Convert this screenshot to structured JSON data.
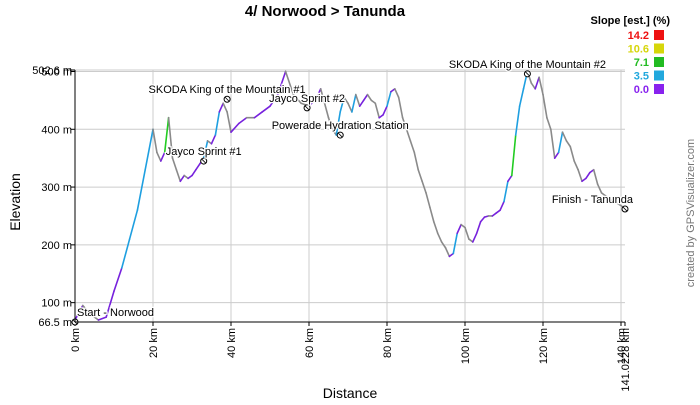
{
  "chart_data": {
    "type": "line",
    "title": "4/ Norwood > Tanunda",
    "xlabel": "Distance",
    "ylabel": "Elevation",
    "xlim": [
      0,
      141.0228
    ],
    "ylim": [
      66.5,
      502.6
    ],
    "x_ticks": [
      {
        "value": 0,
        "label": "0 km"
      },
      {
        "value": 20,
        "label": "20 km"
      },
      {
        "value": 40,
        "label": "40 km"
      },
      {
        "value": 60,
        "label": "60 km"
      },
      {
        "value": 80,
        "label": "80 km"
      },
      {
        "value": 100,
        "label": "100 km"
      },
      {
        "value": 120,
        "label": "120 km"
      },
      {
        "value": 140,
        "label": "140 km"
      },
      {
        "value": 141.0228,
        "label": "141.0228 km"
      }
    ],
    "y_ticks": [
      {
        "value": 66.5,
        "label": "66.5 m"
      },
      {
        "value": 100,
        "label": "100 m"
      },
      {
        "value": 200,
        "label": "200 m"
      },
      {
        "value": 300,
        "label": "300 m"
      },
      {
        "value": 400,
        "label": "400 m"
      },
      {
        "value": 500,
        "label": "500 m"
      },
      {
        "value": 502.6,
        "label": "502.6 m"
      }
    ],
    "grid": true,
    "legend": {
      "title": "Slope [est.] (%)",
      "placement": "top-right",
      "items": [
        {
          "label": "14.2",
          "color": "#ee1111"
        },
        {
          "label": "10.6",
          "color": "#d6d60a"
        },
        {
          "label": "7.1",
          "color": "#22bb22"
        },
        {
          "label": "3.5",
          "color": "#22a8dd"
        },
        {
          "label": "0.0",
          "color": "#8822ee"
        }
      ]
    },
    "slope_colors": {
      "negative": "#8a8a8a",
      "0": "#7722dd",
      "3.5": "#1e9fe0",
      "7.1": "#22cc22",
      "10.6": "#d8d800",
      "14.2": "#ee1111"
    },
    "series": [
      {
        "points": [
          [
            0,
            70
          ],
          [
            2,
            95
          ],
          [
            4,
            80
          ],
          [
            6,
            70
          ],
          [
            8,
            75
          ],
          [
            10,
            120
          ],
          [
            12,
            160
          ],
          [
            14,
            210
          ],
          [
            16,
            260
          ],
          [
            18,
            330
          ],
          [
            20,
            400
          ],
          [
            21,
            360
          ],
          [
            22,
            345
          ],
          [
            23,
            360
          ],
          [
            24,
            420
          ],
          [
            25,
            350
          ],
          [
            26,
            330
          ],
          [
            27,
            310
          ],
          [
            28,
            320
          ],
          [
            29,
            315
          ],
          [
            30,
            320
          ],
          [
            31,
            330
          ],
          [
            32,
            340
          ],
          [
            33,
            350
          ],
          [
            34,
            380
          ],
          [
            35,
            375
          ],
          [
            36,
            390
          ],
          [
            37,
            430
          ],
          [
            38,
            445
          ],
          [
            39,
            430
          ],
          [
            40,
            395
          ],
          [
            42,
            410
          ],
          [
            44,
            420
          ],
          [
            46,
            420
          ],
          [
            48,
            430
          ],
          [
            50,
            440
          ],
          [
            52,
            460
          ],
          [
            54,
            500
          ],
          [
            56,
            460
          ],
          [
            58,
            445
          ],
          [
            60,
            440
          ],
          [
            62,
            455
          ],
          [
            63,
            470
          ],
          [
            64,
            445
          ],
          [
            65,
            420
          ],
          [
            66,
            400
          ],
          [
            67,
            390
          ],
          [
            68,
            430
          ],
          [
            69,
            455
          ],
          [
            70,
            445
          ],
          [
            71,
            430
          ],
          [
            72,
            460
          ],
          [
            73,
            440
          ],
          [
            74,
            450
          ],
          [
            75,
            460
          ],
          [
            76,
            450
          ],
          [
            77,
            445
          ],
          [
            78,
            420
          ],
          [
            79,
            425
          ],
          [
            80,
            440
          ],
          [
            81,
            465
          ],
          [
            82,
            470
          ],
          [
            83,
            455
          ],
          [
            84,
            420
          ],
          [
            85,
            400
          ],
          [
            86,
            380
          ],
          [
            87,
            360
          ],
          [
            88,
            330
          ],
          [
            89,
            310
          ],
          [
            90,
            290
          ],
          [
            91,
            265
          ],
          [
            92,
            240
          ],
          [
            93,
            220
          ],
          [
            94,
            205
          ],
          [
            95,
            195
          ],
          [
            96,
            180
          ],
          [
            97,
            185
          ],
          [
            98,
            220
          ],
          [
            99,
            235
          ],
          [
            100,
            230
          ],
          [
            101,
            210
          ],
          [
            102,
            205
          ],
          [
            103,
            220
          ],
          [
            104,
            240
          ],
          [
            105,
            248
          ],
          [
            106,
            250
          ],
          [
            107,
            250
          ],
          [
            108,
            255
          ],
          [
            109,
            260
          ],
          [
            110,
            275
          ],
          [
            111,
            310
          ],
          [
            112,
            320
          ],
          [
            113,
            390
          ],
          [
            114,
            440
          ],
          [
            115,
            470
          ],
          [
            116,
            500
          ],
          [
            117,
            480
          ],
          [
            118,
            470
          ],
          [
            119,
            490
          ],
          [
            120,
            460
          ],
          [
            121,
            420
          ],
          [
            122,
            400
          ],
          [
            123,
            350
          ],
          [
            124,
            360
          ],
          [
            125,
            395
          ],
          [
            126,
            380
          ],
          [
            127,
            370
          ],
          [
            128,
            345
          ],
          [
            129,
            330
          ],
          [
            130,
            310
          ],
          [
            131,
            315
          ],
          [
            132,
            325
          ],
          [
            133,
            330
          ],
          [
            134,
            305
          ],
          [
            135,
            290
          ],
          [
            136,
            285
          ],
          [
            137,
            280
          ],
          [
            138,
            275
          ],
          [
            139,
            272
          ],
          [
            140,
            268
          ],
          [
            141.0228,
            262
          ]
        ]
      }
    ],
    "annotations": [
      {
        "label": "Start - Norwood",
        "x": 0,
        "y": 66.5
      },
      {
        "label": "Jayco Sprint #1",
        "x": 33,
        "y": 345
      },
      {
        "label": "SKODA King of the Mountain #1",
        "x": 39,
        "y": 452
      },
      {
        "label": "Jayco Sprint #2",
        "x": 59.5,
        "y": 437
      },
      {
        "label": "Powerade Hydration Station",
        "x": 68,
        "y": 390
      },
      {
        "label": "SKODA King of the Mountain #2",
        "x": 116,
        "y": 496
      },
      {
        "label": "Finish - Tanunda",
        "x": 141.0228,
        "y": 262
      }
    ],
    "watermark": "created by GPSVisualizer.com"
  }
}
